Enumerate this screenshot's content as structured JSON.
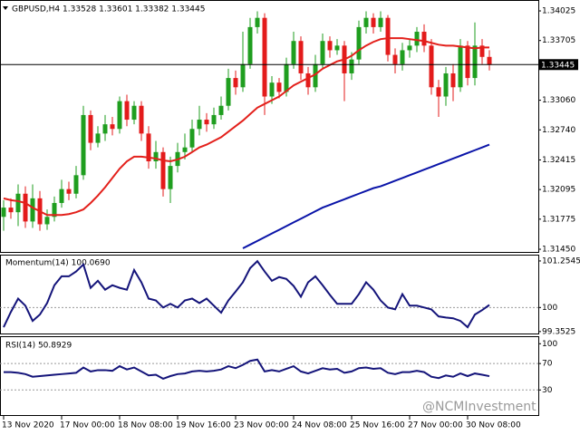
{
  "chart_data": [
    {
      "type": "candlestick",
      "title": "GBPUSD,H4 1.33528 1.33601 1.33382 1.33445",
      "watermark": "@NCMInvestment",
      "categories": [
        "13 Nov 2020",
        null,
        null,
        null,
        null,
        null,
        null,
        null,
        "17 Nov 00:00",
        null,
        null,
        null,
        null,
        null,
        null,
        null,
        "18 Nov 08:00",
        null,
        null,
        null,
        null,
        null,
        null,
        null,
        "19 Nov 16:00",
        null,
        null,
        null,
        null,
        null,
        null,
        null,
        "23 Nov 00:00",
        null,
        null,
        null,
        null,
        null,
        null,
        null,
        "24 Nov 08:00",
        null,
        null,
        null,
        null,
        null,
        null,
        null,
        "25 Nov 16:00",
        null,
        null,
        null,
        null,
        null,
        null,
        null,
        "27 Nov 00:00",
        null,
        null,
        null,
        null,
        null,
        null,
        null,
        "30 Nov 08:00",
        null,
        null,
        null
      ],
      "open": [
        1.318,
        1.319,
        1.3185,
        1.3205,
        1.3175,
        1.32,
        1.3172,
        1.318,
        1.3195,
        1.321,
        1.3205,
        1.3225,
        1.329,
        1.326,
        1.327,
        1.328,
        1.3275,
        1.3305,
        1.3285,
        1.33,
        1.327,
        1.324,
        1.325,
        1.321,
        1.3235,
        1.325,
        1.3255,
        1.3275,
        1.3285,
        1.328,
        1.329,
        1.33,
        1.333,
        1.332,
        1.3345,
        1.3385,
        1.3395,
        1.331,
        1.3325,
        1.3315,
        1.3345,
        1.337,
        1.3335,
        1.332,
        1.3345,
        1.337,
        1.336,
        1.3365,
        1.3335,
        1.335,
        1.3385,
        1.3395,
        1.3385,
        1.3395,
        1.3355,
        1.3345,
        1.336,
        1.3365,
        1.338,
        1.3365,
        1.332,
        1.331,
        1.3335,
        1.332,
        1.3365,
        1.333,
        1.3365,
        1.33528
      ],
      "high": [
        1.3198,
        1.32,
        1.3215,
        1.3213,
        1.3215,
        1.3208,
        1.3188,
        1.3202,
        1.322,
        1.3218,
        1.3235,
        1.33,
        1.3295,
        1.3278,
        1.329,
        1.3288,
        1.331,
        1.3312,
        1.3305,
        1.3305,
        1.3278,
        1.3262,
        1.3255,
        1.3245,
        1.326,
        1.327,
        1.3285,
        1.33,
        1.3292,
        1.3298,
        1.331,
        1.334,
        1.3338,
        1.338,
        1.3395,
        1.3402,
        1.34,
        1.3332,
        1.333,
        1.3352,
        1.338,
        1.3375,
        1.3342,
        1.3355,
        1.3378,
        1.3375,
        1.3372,
        1.337,
        1.3358,
        1.3392,
        1.3402,
        1.34,
        1.3402,
        1.3398,
        1.3362,
        1.3368,
        1.3372,
        1.3385,
        1.3388,
        1.3372,
        1.3328,
        1.3342,
        1.3345,
        1.3372,
        1.337,
        1.339,
        1.3372,
        1.33601
      ],
      "low": [
        1.3165,
        1.3178,
        1.317,
        1.3168,
        1.3168,
        1.3165,
        1.3166,
        1.3175,
        1.319,
        1.3198,
        1.32,
        1.322,
        1.3252,
        1.3255,
        1.3262,
        1.3268,
        1.327,
        1.3278,
        1.328,
        1.3262,
        1.3232,
        1.3232,
        1.3202,
        1.3195,
        1.3228,
        1.3242,
        1.325,
        1.3268,
        1.3272,
        1.3275,
        1.3285,
        1.3295,
        1.3312,
        1.3315,
        1.334,
        1.3378,
        1.329,
        1.3302,
        1.3308,
        1.331,
        1.334,
        1.3328,
        1.3312,
        1.3315,
        1.334,
        1.3352,
        1.3355,
        1.3305,
        1.3328,
        1.3345,
        1.3378,
        1.3378,
        1.338,
        1.3348,
        1.3335,
        1.3338,
        1.3352,
        1.3358,
        1.3358,
        1.3312,
        1.3288,
        1.33,
        1.3305,
        1.3315,
        1.3322,
        1.3322,
        1.3345,
        1.33382
      ],
      "close": [
        1.319,
        1.3185,
        1.3205,
        1.3175,
        1.32,
        1.3172,
        1.318,
        1.3195,
        1.321,
        1.3205,
        1.3225,
        1.329,
        1.326,
        1.327,
        1.328,
        1.3275,
        1.3305,
        1.3285,
        1.33,
        1.327,
        1.324,
        1.325,
        1.321,
        1.3235,
        1.325,
        1.3255,
        1.3275,
        1.3285,
        1.328,
        1.329,
        1.33,
        1.333,
        1.332,
        1.3345,
        1.3385,
        1.3395,
        1.331,
        1.3325,
        1.3315,
        1.3345,
        1.337,
        1.3335,
        1.332,
        1.3345,
        1.337,
        1.336,
        1.3365,
        1.3335,
        1.335,
        1.3385,
        1.3395,
        1.3385,
        1.3395,
        1.3355,
        1.3345,
        1.336,
        1.3365,
        1.338,
        1.3365,
        1.332,
        1.331,
        1.3335,
        1.332,
        1.3365,
        1.333,
        1.3365,
        1.33528,
        1.33445
      ],
      "up_color": "#1f9e1f",
      "down_color": "#e31b1b",
      "series": [
        {
          "color": "#e3201b",
          "values": [
            1.32,
            1.3198,
            1.3197,
            1.3195,
            1.319,
            1.3186,
            1.3182,
            1.3182,
            1.3182,
            1.3183,
            1.3185,
            1.3188,
            1.3195,
            1.3203,
            1.3212,
            1.3222,
            1.3232,
            1.324,
            1.3245,
            1.3245,
            1.3244,
            1.3243,
            1.3241,
            1.324,
            1.3242,
            1.3245,
            1.325,
            1.3255,
            1.3258,
            1.3262,
            1.3266,
            1.3272,
            1.3278,
            1.3284,
            1.3291,
            1.3298,
            1.3302,
            1.3306,
            1.331,
            1.3316,
            1.3322,
            1.3326,
            1.333,
            1.3334,
            1.334,
            1.3344,
            1.3348,
            1.335,
            1.3354,
            1.336,
            1.3365,
            1.3369,
            1.3372,
            1.3373,
            1.3373,
            1.3373,
            1.3372,
            1.3371,
            1.337,
            1.3368,
            1.3366,
            1.3365,
            1.3365,
            1.3364,
            1.3363,
            1.3362,
            1.3363,
            1.3363
          ]
        },
        {
          "color": "#0a14a8",
          "values": [
            null,
            null,
            null,
            null,
            null,
            null,
            null,
            null,
            null,
            null,
            null,
            null,
            null,
            null,
            null,
            null,
            null,
            null,
            null,
            null,
            null,
            null,
            null,
            null,
            null,
            null,
            null,
            null,
            null,
            null,
            null,
            null,
            null,
            1.3146,
            1.315,
            1.3154,
            1.3158,
            1.3162,
            1.3166,
            1.317,
            1.3174,
            1.3178,
            1.3182,
            1.3186,
            1.319,
            1.3193,
            1.3196,
            1.3199,
            1.3202,
            1.3205,
            1.3208,
            1.3211,
            1.3213,
            1.3216,
            1.3219,
            1.3222,
            1.3225,
            1.3228,
            1.3231,
            1.3234,
            1.3237,
            1.324,
            1.3243,
            1.3246,
            1.3249,
            1.3252,
            1.3255,
            1.3258
          ]
        }
      ],
      "ylim": [
        1.31421,
        1.34133
      ],
      "yticks": [
        1.34025,
        1.33705,
        {
          "value": 1.3306,
          "label": "1.33060"
        },
        {
          "value": 1.3274,
          "label": "1.32740"
        },
        1.32415,
        1.32095,
        1.31775,
        {
          "value": 1.3145,
          "label": "1.31450"
        }
      ]
    },
    {
      "type": "line",
      "title": "Momentum(14) 100.0690",
      "series": [
        {
          "color": "#14147a",
          "values": [
            99.47,
            99.88,
            100.24,
            100.05,
            99.64,
            99.81,
            100.12,
            100.6,
            100.84,
            100.84,
            100.97,
            101.16,
            100.53,
            100.72,
            100.48,
            100.6,
            100.53,
            100.48,
            101.01,
            100.68,
            100.24,
            100.19,
            100.0,
            100.1,
            100.0,
            100.19,
            100.24,
            100.12,
            100.24,
            100.05,
            99.86,
            100.19,
            100.43,
            100.68,
            101.06,
            101.25,
            100.97,
            100.72,
            100.82,
            100.77,
            100.58,
            100.29,
            100.68,
            100.84,
            100.6,
            100.34,
            100.1,
            100.1,
            100.1,
            100.36,
            100.68,
            100.48,
            100.19,
            100.0,
            99.95,
            100.36,
            100.05,
            100.05,
            100.0,
            99.95,
            99.76,
            99.73,
            99.71,
            99.64,
            99.47,
            99.81,
            99.93,
            100.069
          ]
        }
      ],
      "ylim": [
        99.3,
        101.375
      ],
      "yticks": [
        101.2545,
        100,
        99.3525
      ],
      "levels": [
        100
      ]
    },
    {
      "type": "line",
      "title": "RSI(14) 50.8929",
      "series": [
        {
          "color": "#14147a",
          "values": [
            57,
            57,
            56,
            54,
            50,
            51,
            52,
            53,
            54,
            55,
            56,
            64,
            58,
            60,
            60,
            59,
            66,
            61,
            64,
            58,
            52,
            53,
            47,
            51,
            54,
            55,
            58,
            59,
            58,
            59,
            61,
            66,
            63,
            68,
            74,
            76,
            58,
            60,
            58,
            62,
            66,
            58,
            55,
            59,
            63,
            61,
            62,
            56,
            58,
            63,
            64,
            62,
            63,
            56,
            54,
            57,
            57,
            59,
            57,
            50,
            48,
            52,
            50,
            55,
            51,
            55,
            53,
            50.8929
          ]
        }
      ],
      "ylim": [
        -8,
        110
      ],
      "yticks": [
        100,
        70,
        30
      ],
      "levels": [
        70,
        30
      ]
    }
  ]
}
